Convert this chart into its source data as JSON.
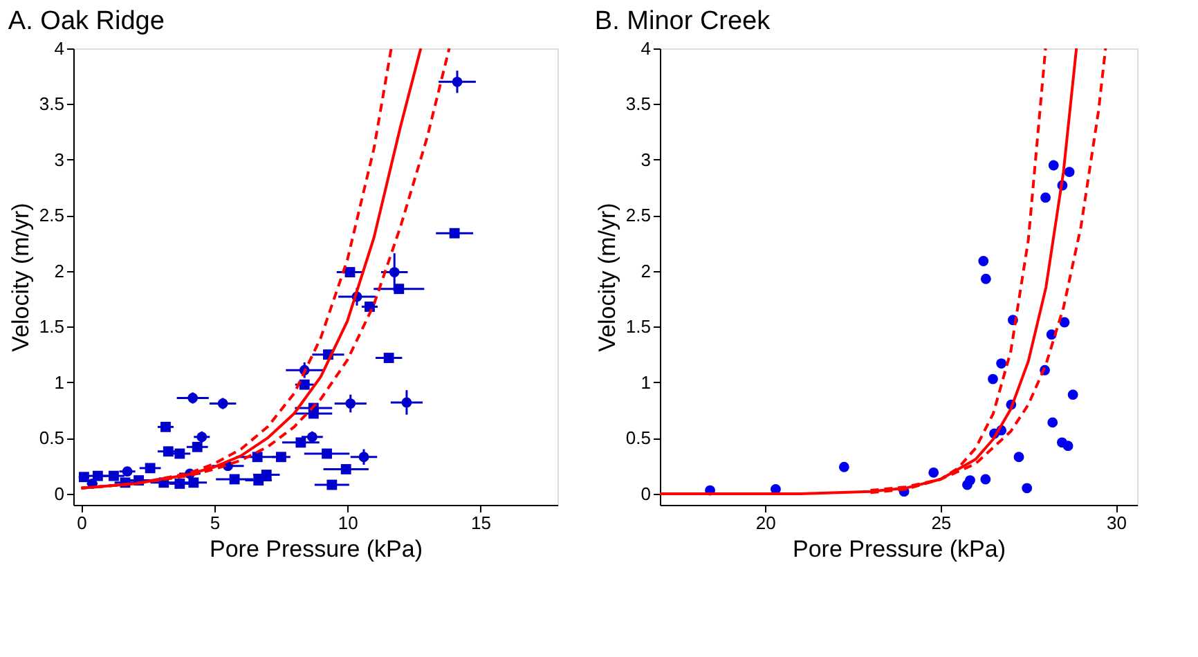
{
  "chart_data": [
    {
      "type": "scatter",
      "title": "A. Oak Ridge",
      "xlabel": "Pore Pressure (kPa)",
      "ylabel": "Velocity (m/yr)",
      "xlim": [
        -0.3,
        17.9
      ],
      "ylim": [
        -0.1,
        4
      ],
      "xticks": [
        0,
        5,
        10,
        15
      ],
      "yticks": [
        0,
        0.5,
        1,
        1.5,
        2,
        2.5,
        3,
        3.5,
        4
      ],
      "grid": false,
      "legend": false,
      "series": [
        {
          "type": "scatter",
          "marker": "circle",
          "color": "#0000cc",
          "x": [
            14.13,
            11.77,
            10.36,
            8.39,
            4.19,
            5.32,
            10.12,
            12.23,
            8.68,
            4.53,
            10.62,
            5.51,
            4.08,
            0.41,
            1.73
          ],
          "values": [
            3.7,
            1.99,
            1.77,
            1.11,
            0.86,
            0.81,
            0.81,
            0.82,
            0.51,
            0.51,
            0.33,
            0.25,
            0.18,
            0.09,
            0.2
          ],
          "errors": [
            0.1,
            0.17,
            0.08,
            0.07,
            0.05,
            0.05,
            0.08,
            0.11,
            0.05,
            0.05,
            0.07,
            0.04,
            0.03,
            0.03,
            0.03
          ],
          "xerrors": [
            0.7,
            0.5,
            0.7,
            0.7,
            0.6,
            0.5,
            0.6,
            0.6,
            0.4,
            0.3,
            0.5,
            0.6,
            0.4,
            0.2,
            0.3
          ]
        },
        {
          "type": "scatter",
          "marker": "square",
          "color": "#0000cc",
          "x": [
            14.03,
            10.1,
            11.94,
            10.84,
            9.28,
            11.56,
            8.39,
            8.73,
            8.73,
            3.17,
            8.25,
            9.23,
            7.51,
            6.62,
            9.95,
            9.42,
            3.27,
            3.7,
            4.36,
            5.76,
            6.96,
            6.66,
            0.1,
            0.62,
            1.22,
            2.16,
            2.59,
            3.1,
            3.7,
            4.22,
            1.65
          ],
          "values": [
            2.34,
            1.99,
            1.84,
            1.68,
            1.25,
            1.22,
            0.98,
            0.77,
            0.72,
            0.6,
            0.46,
            0.36,
            0.33,
            0.33,
            0.22,
            0.08,
            0.38,
            0.36,
            0.42,
            0.13,
            0.17,
            0.12,
            0.15,
            0.16,
            0.16,
            0.12,
            0.23,
            0.1,
            0.09,
            0.1,
            0.1
          ],
          "xerrors": [
            0.7,
            0.5,
            0.95,
            0.3,
            0.6,
            0.5,
            0.35,
            0.7,
            0.7,
            0.3,
            0.7,
            0.85,
            0.35,
            0.8,
            0.85,
            0.65,
            0.4,
            0.4,
            0.4,
            0.7,
            0.5,
            0.5,
            0.2,
            0.4,
            0.4,
            0.5,
            0.4,
            0.5,
            0.4,
            0.5,
            0.4
          ]
        },
        {
          "type": "line",
          "line_style": "solid",
          "color": "#ff0000",
          "x": [
            0,
            2,
            4,
            5,
            6,
            7,
            8,
            9,
            10,
            11,
            12,
            12.76
          ],
          "values": [
            0.05,
            0.09,
            0.17,
            0.24,
            0.34,
            0.5,
            0.72,
            1.05,
            1.55,
            2.3,
            3.3,
            4
          ]
        },
        {
          "type": "line",
          "line_style": "dashed",
          "color": "#ff0000",
          "x": [
            0,
            2,
            4,
            5,
            6,
            7,
            8,
            9,
            10,
            11,
            11.65
          ],
          "values": [
            0.05,
            0.09,
            0.18,
            0.27,
            0.4,
            0.6,
            0.9,
            1.4,
            2.1,
            3.1,
            4
          ]
        },
        {
          "type": "line",
          "line_style": "dashed",
          "color": "#ff0000",
          "x": [
            0,
            2,
            4,
            5,
            6,
            7,
            8,
            9,
            10,
            11,
            12,
            13,
            13.83
          ],
          "values": [
            0.05,
            0.09,
            0.16,
            0.22,
            0.3,
            0.42,
            0.6,
            0.85,
            1.2,
            1.7,
            2.4,
            3.2,
            4
          ]
        }
      ]
    },
    {
      "type": "scatter",
      "title": "B. Minor Creek",
      "xlabel": "Pore Pressure (kPa)",
      "ylabel": "Velocity (m/yr)",
      "xlim": [
        17,
        30.6
      ],
      "ylim": [
        -0.1,
        4
      ],
      "xticks": [
        20,
        25,
        30
      ],
      "yticks": [
        0,
        0.5,
        1,
        1.5,
        2,
        2.5,
        3,
        3.5,
        4
      ],
      "grid": false,
      "legend": false,
      "series": [
        {
          "type": "scatter",
          "marker": "circle",
          "color": "#0000ee",
          "x": [
            18.43,
            20.3,
            22.25,
            23.96,
            24.8,
            25.76,
            25.84,
            26.28,
            26.22,
            26.29,
            26.49,
            26.53,
            26.73,
            26.73,
            27.01,
            27.06,
            27.23,
            27.46,
            27.99,
            27.97,
            28.16,
            28.19,
            28.22,
            28.47,
            28.46,
            28.63,
            28.53,
            28.67,
            28.77
          ],
          "values": [
            0.03,
            0.04,
            0.24,
            0.02,
            0.19,
            0.08,
            0.12,
            0.13,
            2.09,
            1.93,
            1.03,
            0.54,
            0.57,
            1.17,
            0.8,
            1.56,
            0.33,
            0.05,
            2.66,
            1.11,
            1.43,
            0.64,
            2.95,
            2.77,
            0.46,
            0.43,
            1.54,
            2.89,
            0.89
          ]
        },
        {
          "type": "line",
          "line_style": "solid",
          "color": "#ff0000",
          "x": [
            17,
            19,
            21,
            23,
            24,
            25,
            26,
            26.5,
            27,
            27.5,
            28,
            28.5,
            28.87
          ],
          "values": [
            0,
            0,
            0,
            0.02,
            0.05,
            0.13,
            0.31,
            0.49,
            0.76,
            1.19,
            1.85,
            2.89,
            4
          ]
        },
        {
          "type": "line",
          "line_style": "dashed",
          "color": "#ff0000",
          "x": [
            23,
            24,
            25,
            25.5,
            26,
            26.5,
            27,
            27.5,
            27.99
          ],
          "values": [
            0.01,
            0.04,
            0.13,
            0.23,
            0.41,
            0.72,
            1.28,
            2.28,
            4
          ]
        },
        {
          "type": "line",
          "line_style": "dashed",
          "color": "#ff0000",
          "x": [
            23,
            24,
            25,
            26,
            27,
            27.5,
            28,
            28.5,
            29,
            29.5,
            29.7
          ],
          "values": [
            0.03,
            0.06,
            0.13,
            0.27,
            0.56,
            0.8,
            1.16,
            1.67,
            2.4,
            3.44,
            4
          ]
        }
      ]
    }
  ]
}
